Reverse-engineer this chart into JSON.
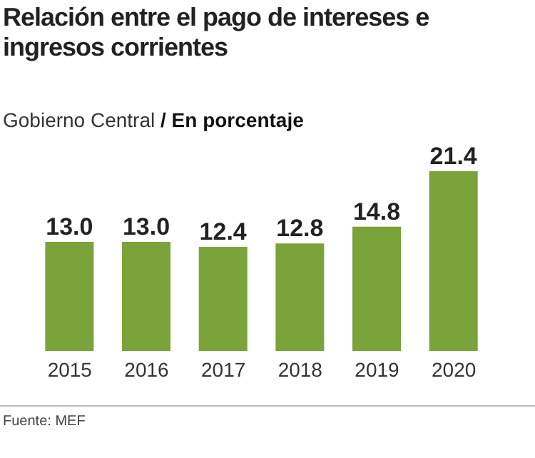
{
  "chart_data": {
    "type": "bar",
    "title": "Relación entre el pago de intereses e ingresos corrientes",
    "subtitle": "Gobierno Central",
    "ylabel": "/ En porcentaje",
    "categories": [
      "2015",
      "2016",
      "2017",
      "2018",
      "2019",
      "2020"
    ],
    "values": [
      13.0,
      13.0,
      12.4,
      12.8,
      14.8,
      21.4
    ],
    "value_labels": [
      "13.0",
      "13.0",
      "12.4",
      "12.8",
      "14.8",
      "21.4"
    ],
    "color": "#7aa33a",
    "annotations": [
      "Fuente: MEF"
    ]
  }
}
